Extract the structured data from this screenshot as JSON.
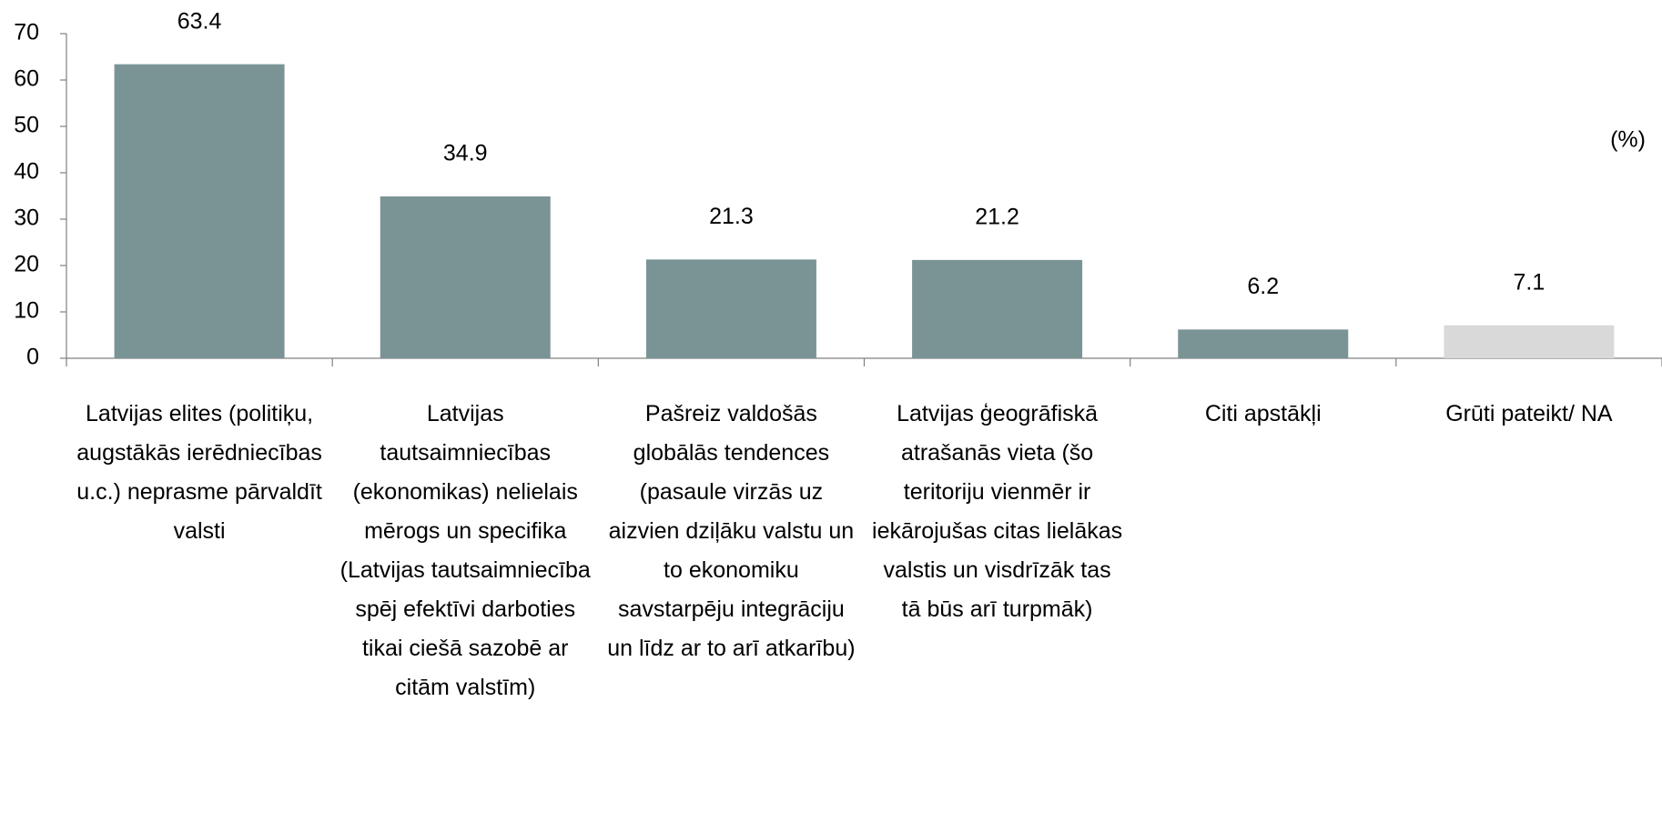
{
  "chart_data": {
    "type": "bar",
    "unit_label": "(%)",
    "categories": [
      "Latvijas elites (politiķu, augstākās ierēdniecības u.c.) neprasme pārvaldīt valsti",
      "Latvijas tautsaimniecības (ekonomikas) nelielais mērogs un specifika (Latvijas tautsaimniecība spēj efektīvi darboties tikai ciešā sazobē ar citām valstīm)",
      "Pašreiz valdošās globālās tendences (pasaule virzās uz aizvien dziļāku valstu un to ekonomiku savstarpēju integrāciju un līdz ar to arī atkarību)",
      "Latvijas ģeogrāfiskā atrašanās vieta (šo teritoriju vienmēr ir iekārojušas citas lielākas valstis un visdrīzāk tas tā būs arī turpmāk)",
      "Citi apstākļi",
      "Grūti pateikt/ NA"
    ],
    "values": [
      63.4,
      34.9,
      21.3,
      21.2,
      6.2,
      7.1
    ],
    "colors": [
      "#7a9496",
      "#7a9496",
      "#7a9496",
      "#7a9496",
      "#7a9496",
      "#d9d9d9"
    ],
    "ylim": [
      0,
      70
    ],
    "yticks": [
      0,
      10,
      20,
      30,
      40,
      50,
      60,
      70
    ],
    "grid": false
  }
}
